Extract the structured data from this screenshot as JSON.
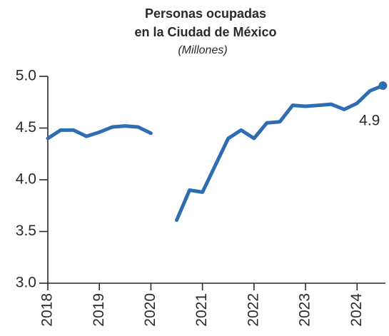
{
  "chart_data": {
    "type": "line",
    "title": [
      "Personas ocupadas",
      "en la Ciudad de México"
    ],
    "subtitle": "(Millones)",
    "x": [
      2018,
      2018.25,
      2018.5,
      2018.75,
      2019,
      2019.25,
      2019.5,
      2019.75,
      2020,
      2020.25,
      2020.5,
      2020.75,
      2021,
      2021.25,
      2021.5,
      2021.75,
      2022,
      2022.25,
      2022.5,
      2022.75,
      2023,
      2023.25,
      2023.5,
      2023.75,
      2024,
      2024.25,
      2024.5
    ],
    "series": [
      {
        "color": "#2f6db3",
        "values": [
          4.4,
          4.48,
          4.48,
          4.42,
          4.46,
          4.51,
          4.52,
          4.51,
          4.45,
          null,
          3.61,
          3.9,
          3.88,
          4.14,
          4.4,
          4.48,
          4.4,
          4.55,
          4.56,
          4.72,
          4.71,
          4.72,
          4.73,
          4.68,
          4.74,
          4.86,
          4.91
        ],
        "value_labels": [
          null,
          null,
          null,
          null,
          null,
          null,
          null,
          null,
          null,
          null,
          null,
          null,
          null,
          null,
          null,
          null,
          null,
          null,
          null,
          null,
          null,
          null,
          null,
          null,
          null,
          null,
          "4.9"
        ]
      }
    ],
    "xlim": [
      2018,
      2024.55
    ],
    "xticks": [
      2018,
      2019,
      2020,
      2021,
      2022,
      2023,
      2024
    ],
    "ylim": [
      3,
      5
    ],
    "yticks": [
      {
        "value": 3,
        "label": "3.0"
      },
      3.5,
      {
        "value": 4,
        "label": "4.0"
      },
      4.5,
      {
        "value": 5,
        "label": "5.0"
      }
    ],
    "grid": false
  }
}
